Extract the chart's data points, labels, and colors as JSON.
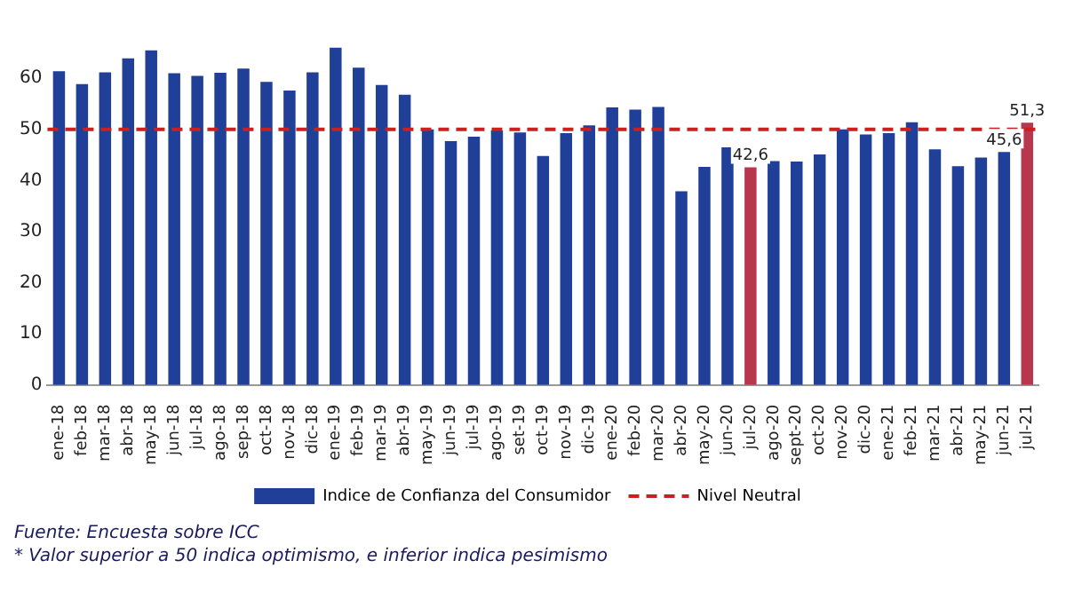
{
  "chart_data": {
    "type": "bar",
    "categories": [
      "ene-18",
      "feb-18",
      "mar-18",
      "abr-18",
      "may-18",
      "jun-18",
      "jul-18",
      "ago-18",
      "sep-18",
      "oct-18",
      "nov-18",
      "dic-18",
      "ene-19",
      "feb-19",
      "mar-19",
      "abr-19",
      "may-19",
      "jun-19",
      "jul-19",
      "ago-19",
      "set-19",
      "oct-19",
      "nov-19",
      "dic-19",
      "ene-20",
      "feb-20",
      "mar-20",
      "abr-20",
      "may-20",
      "jun-20",
      "jul-20",
      "ago-20",
      "sept-20",
      "oct-20",
      "nov-20",
      "dic-20",
      "ene-21",
      "feb-21",
      "mar-21",
      "abr-21",
      "may-21",
      "jun-21",
      "jul-21"
    ],
    "series": [
      {
        "name": "Indice de Confianza del Consumidor",
        "color": "#1f3f99",
        "colors": [
          "#1f3f99",
          "#1f3f99",
          "#1f3f99",
          "#1f3f99",
          "#1f3f99",
          "#1f3f99",
          "#1f3f99",
          "#1f3f99",
          "#1f3f99",
          "#1f3f99",
          "#1f3f99",
          "#1f3f99",
          "#1f3f99",
          "#1f3f99",
          "#1f3f99",
          "#1f3f99",
          "#1f3f99",
          "#1f3f99",
          "#1f3f99",
          "#1f3f99",
          "#1f3f99",
          "#1f3f99",
          "#1f3f99",
          "#1f3f99",
          "#1f3f99",
          "#1f3f99",
          "#1f3f99",
          "#1f3f99",
          "#1f3f99",
          "#1f3f99",
          "#b8374f",
          "#1f3f99",
          "#1f3f99",
          "#1f3f99",
          "#1f3f99",
          "#1f3f99",
          "#1f3f99",
          "#1f3f99",
          "#1f3f99",
          "#1f3f99",
          "#1f3f99",
          "#1f3f99",
          "#b8374f"
        ],
        "values": [
          61.4,
          58.9,
          61.2,
          63.9,
          65.5,
          61.0,
          60.5,
          61.1,
          61.9,
          59.3,
          57.6,
          61.2,
          66.0,
          62.1,
          58.7,
          56.8,
          50.0,
          47.7,
          48.6,
          49.8,
          49.4,
          44.8,
          49.3,
          50.8,
          54.3,
          53.9,
          54.4,
          37.9,
          42.7,
          46.5,
          42.6,
          43.8,
          43.7,
          45.1,
          50.0,
          49.0,
          49.3,
          51.4,
          46.1,
          42.8,
          44.5,
          45.6,
          51.3
        ],
        "value_labels": [
          null,
          null,
          null,
          null,
          null,
          null,
          null,
          null,
          null,
          null,
          null,
          null,
          null,
          null,
          null,
          null,
          null,
          null,
          null,
          null,
          null,
          null,
          null,
          null,
          null,
          null,
          null,
          null,
          null,
          null,
          "42,6",
          null,
          null,
          null,
          null,
          null,
          null,
          null,
          null,
          null,
          null,
          "45,6",
          "51,3"
        ]
      }
    ],
    "ref_lines": [
      {
        "axis": "y",
        "value": 50,
        "label": "Nivel Neutral",
        "color": "#cc1f1f",
        "line_style": "dashed"
      }
    ],
    "ylim": [
      0,
      67
    ],
    "yticks": [
      0,
      10,
      20,
      30,
      40,
      50,
      60
    ],
    "legend": "bottom",
    "annotations": [
      "Fuente: Encuesta  sobre ICC",
      "* Valor superior a 50 indica optimismo, e inferior indica pesimismo"
    ]
  }
}
